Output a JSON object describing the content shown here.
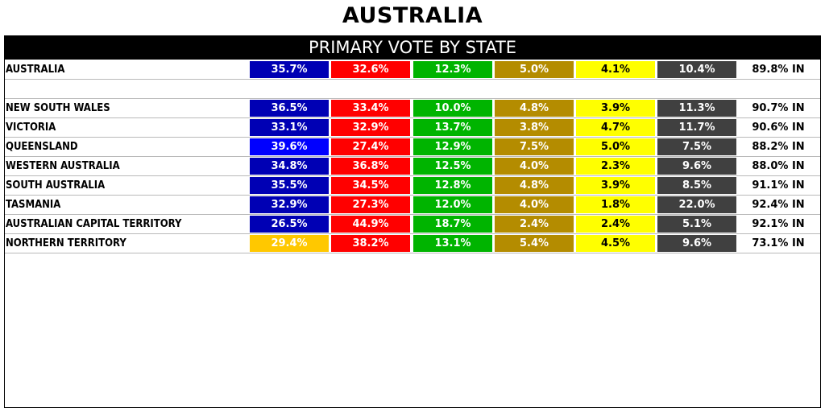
{
  "title": "AUSTRALIA",
  "header": "PRIMARY VOTE BY STATE",
  "colors": {
    "blue": "#0000b4",
    "blue_bright": "#0000ff",
    "red": "#ff0000",
    "green": "#00b400",
    "olive": "#b48c00",
    "yellow": "#ffff00",
    "gray": "#404040",
    "gold": "#ffc800"
  },
  "national": {
    "label": "AUSTRALIA",
    "values": [
      "35.7%",
      "32.6%",
      "12.3%",
      "5.0%",
      "4.1%",
      "10.4%"
    ],
    "counted": "89.8% IN"
  },
  "states": [
    {
      "label": "NEW SOUTH WALES",
      "values": [
        "36.5%",
        "33.4%",
        "10.0%",
        "4.8%",
        "3.9%",
        "11.3%"
      ],
      "counted": "90.7% IN",
      "first_color": "blue"
    },
    {
      "label": "VICTORIA",
      "values": [
        "33.1%",
        "32.9%",
        "13.7%",
        "3.8%",
        "4.7%",
        "11.7%"
      ],
      "counted": "90.6% IN",
      "first_color": "blue"
    },
    {
      "label": "QUEENSLAND",
      "values": [
        "39.6%",
        "27.4%",
        "12.9%",
        "7.5%",
        "5.0%",
        "7.5%"
      ],
      "counted": "88.2% IN",
      "first_color": "blue_bright"
    },
    {
      "label": "WESTERN AUSTRALIA",
      "values": [
        "34.8%",
        "36.8%",
        "12.5%",
        "4.0%",
        "2.3%",
        "9.6%"
      ],
      "counted": "88.0% IN",
      "first_color": "blue"
    },
    {
      "label": "SOUTH AUSTRALIA",
      "values": [
        "35.5%",
        "34.5%",
        "12.8%",
        "4.8%",
        "3.9%",
        "8.5%"
      ],
      "counted": "91.1% IN",
      "first_color": "blue"
    },
    {
      "label": "TASMANIA",
      "values": [
        "32.9%",
        "27.3%",
        "12.0%",
        "4.0%",
        "1.8%",
        "22.0%"
      ],
      "counted": "92.4% IN",
      "first_color": "blue"
    },
    {
      "label": "AUSTRALIAN CAPITAL TERRITORY",
      "values": [
        "26.5%",
        "44.9%",
        "18.7%",
        "2.4%",
        "2.4%",
        "5.1%"
      ],
      "counted": "92.1% IN",
      "first_color": "blue"
    },
    {
      "label": "NORTHERN TERRITORY",
      "values": [
        "29.4%",
        "38.2%",
        "13.1%",
        "5.4%",
        "4.5%",
        "9.6%"
      ],
      "counted": "73.1% IN",
      "first_color": "gold"
    }
  ]
}
